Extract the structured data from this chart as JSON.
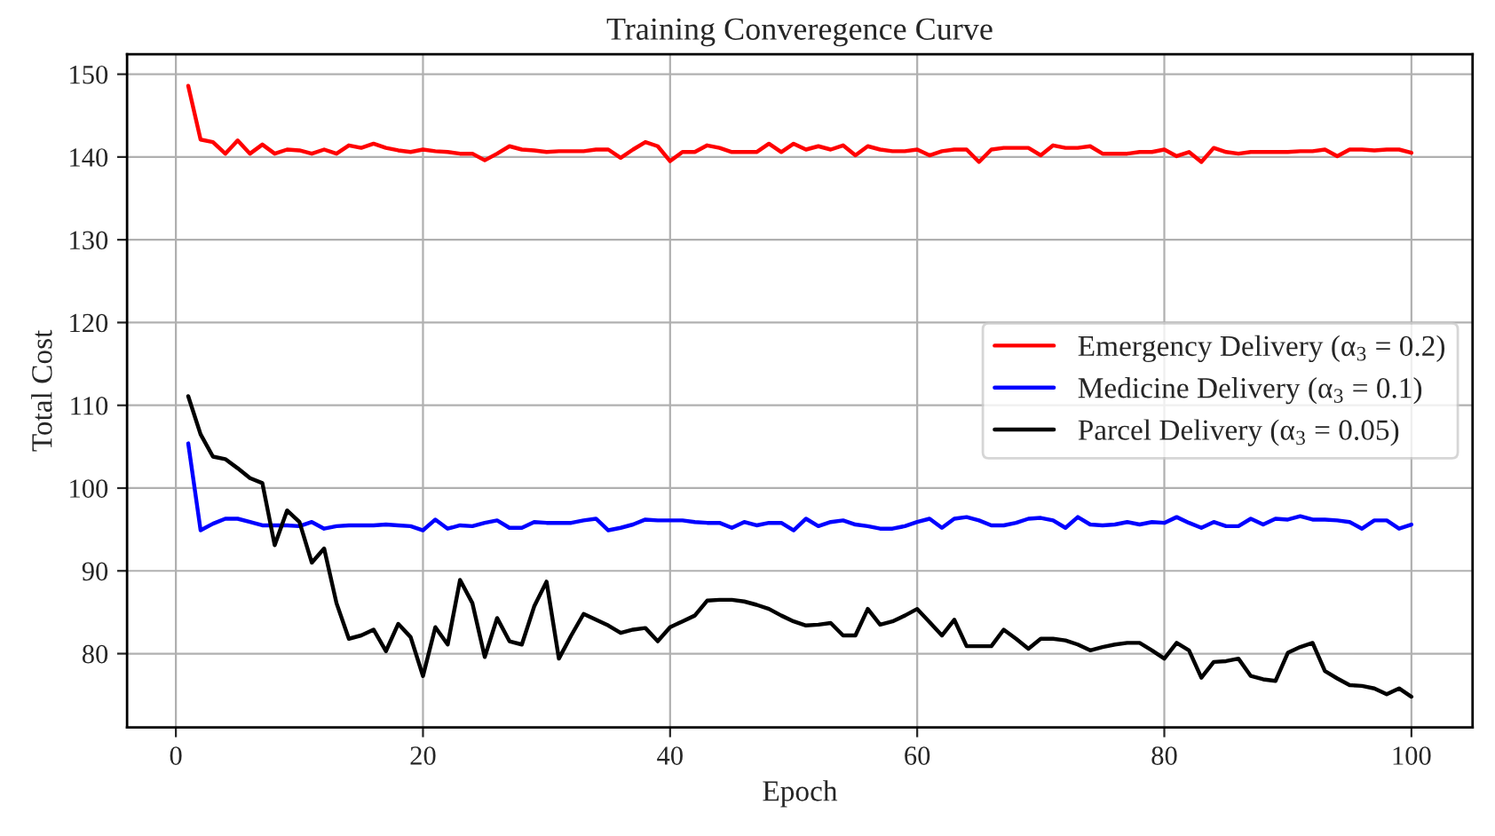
{
  "chart_data": {
    "type": "line",
    "title": "Training Converegence Curve",
    "xlabel": "Epoch",
    "ylabel": "Total Cost",
    "x": [
      1,
      2,
      3,
      4,
      5,
      6,
      7,
      8,
      9,
      10,
      11,
      12,
      13,
      14,
      15,
      16,
      17,
      18,
      19,
      20,
      21,
      22,
      23,
      24,
      25,
      26,
      27,
      28,
      29,
      30,
      31,
      32,
      33,
      34,
      35,
      36,
      37,
      38,
      39,
      40,
      41,
      42,
      43,
      44,
      45,
      46,
      47,
      48,
      49,
      50,
      51,
      52,
      53,
      54,
      55,
      56,
      57,
      58,
      59,
      60,
      61,
      62,
      63,
      64,
      65,
      66,
      67,
      68,
      69,
      70,
      71,
      72,
      73,
      74,
      75,
      76,
      77,
      78,
      79,
      80,
      81,
      82,
      83,
      84,
      85,
      86,
      87,
      88,
      89,
      90,
      91,
      92,
      93,
      94,
      95,
      96,
      97,
      98,
      99,
      100
    ],
    "series": [
      {
        "name": "Emergency Delivery (α$_{3}$ = 0.2)",
        "color": "#ff0000",
        "values": [
          148.6,
          142.1,
          141.8,
          140.4,
          142,
          140.4,
          141.5,
          140.4,
          140.9,
          140.8,
          140.4,
          140.9,
          140.4,
          141.4,
          141.1,
          141.6,
          141.1,
          140.8,
          140.6,
          140.9,
          140.7,
          140.6,
          140.4,
          140.4,
          139.6,
          140.4,
          141.3,
          140.9,
          140.8,
          140.6,
          140.7,
          140.7,
          140.7,
          140.9,
          140.9,
          139.9,
          140.9,
          141.8,
          141.3,
          139.5,
          140.6,
          140.6,
          141.4,
          141.1,
          140.6,
          140.6,
          140.6,
          141.6,
          140.6,
          141.6,
          140.9,
          141.3,
          140.9,
          141.4,
          140.2,
          141.3,
          140.9,
          140.7,
          140.7,
          140.9,
          140.2,
          140.7,
          140.9,
          140.9,
          139.4,
          140.9,
          141.1,
          141.1,
          141.1,
          140.2,
          141.4,
          141.1,
          141.1,
          141.3,
          140.4,
          140.4,
          140.4,
          140.6,
          140.6,
          140.9,
          140.1,
          140.6,
          139.4,
          141.1,
          140.6,
          140.4,
          140.6,
          140.6,
          140.6,
          140.6,
          140.7,
          140.7,
          140.9,
          140.1,
          140.9,
          140.9,
          140.8,
          140.9,
          140.9,
          140.5
        ]
      },
      {
        "name": "Medicine Delivery (α$_{3}$ = 0.1)",
        "color": "#0000ff",
        "values": [
          105.4,
          94.9,
          95.7,
          96.3,
          96.3,
          95.9,
          95.5,
          95.5,
          95.5,
          95.4,
          95.9,
          95.1,
          95.4,
          95.5,
          95.5,
          95.5,
          95.6,
          95.5,
          95.4,
          94.9,
          96.2,
          95.1,
          95.5,
          95.4,
          95.8,
          96.1,
          95.2,
          95.2,
          95.9,
          95.8,
          95.8,
          95.8,
          96.1,
          96.3,
          94.9,
          95.2,
          95.6,
          96.2,
          96.1,
          96.1,
          96.1,
          95.9,
          95.8,
          95.8,
          95.2,
          95.9,
          95.5,
          95.8,
          95.8,
          94.9,
          96.3,
          95.4,
          95.9,
          96.1,
          95.6,
          95.4,
          95.1,
          95.1,
          95.4,
          95.9,
          96.3,
          95.2,
          96.3,
          96.5,
          96.1,
          95.5,
          95.5,
          95.8,
          96.3,
          96.4,
          96.1,
          95.2,
          96.5,
          95.6,
          95.5,
          95.6,
          95.9,
          95.6,
          95.9,
          95.8,
          96.5,
          95.8,
          95.2,
          95.9,
          95.4,
          95.4,
          96.3,
          95.6,
          96.3,
          96.2,
          96.6,
          96.2,
          96.2,
          96.1,
          95.9,
          95.1,
          96.1,
          96.1,
          95.1,
          95.6
        ]
      },
      {
        "name": "Parcel Delivery (α$_{3}$ = 0.05)",
        "color": "#000000",
        "values": [
          111.1,
          106.5,
          103.8,
          103.5,
          102.4,
          101.2,
          100.6,
          93.1,
          97.3,
          95.9,
          91,
          92.7,
          86.1,
          81.8,
          82.2,
          82.9,
          80.3,
          83.6,
          82,
          77.3,
          83.2,
          81.1,
          88.9,
          86.1,
          79.6,
          84.3,
          81.5,
          81.1,
          85.7,
          88.7,
          79.4,
          82.2,
          84.8,
          84.1,
          83.4,
          82.5,
          82.9,
          83.1,
          81.5,
          83.2,
          83.9,
          84.6,
          86.4,
          86.5,
          86.5,
          86.3,
          85.9,
          85.4,
          84.6,
          83.9,
          83.4,
          83.5,
          83.7,
          82.2,
          82.2,
          85.4,
          83.5,
          83.9,
          84.6,
          85.4,
          83.8,
          82.2,
          84.1,
          80.9,
          80.9,
          80.9,
          82.9,
          81.8,
          80.6,
          81.8,
          81.8,
          81.6,
          81.1,
          80.4,
          80.8,
          81.1,
          81.3,
          81.3,
          80.4,
          79.4,
          81.3,
          80.4,
          77.1,
          79,
          79.1,
          79.4,
          77.3,
          76.9,
          76.7,
          80.1,
          80.8,
          81.3,
          77.9,
          77,
          76.2,
          76.1,
          75.8,
          75.1,
          75.8,
          74.8
        ]
      }
    ],
    "xlim": [
      -3.95,
      104.95
    ],
    "ylim": [
      71.1,
      152.4
    ],
    "xticks": [
      0,
      20,
      40,
      60,
      80,
      100
    ],
    "yticks": [
      80,
      90,
      100,
      110,
      120,
      130,
      140,
      150
    ],
    "grid": true,
    "legend": "right"
  }
}
